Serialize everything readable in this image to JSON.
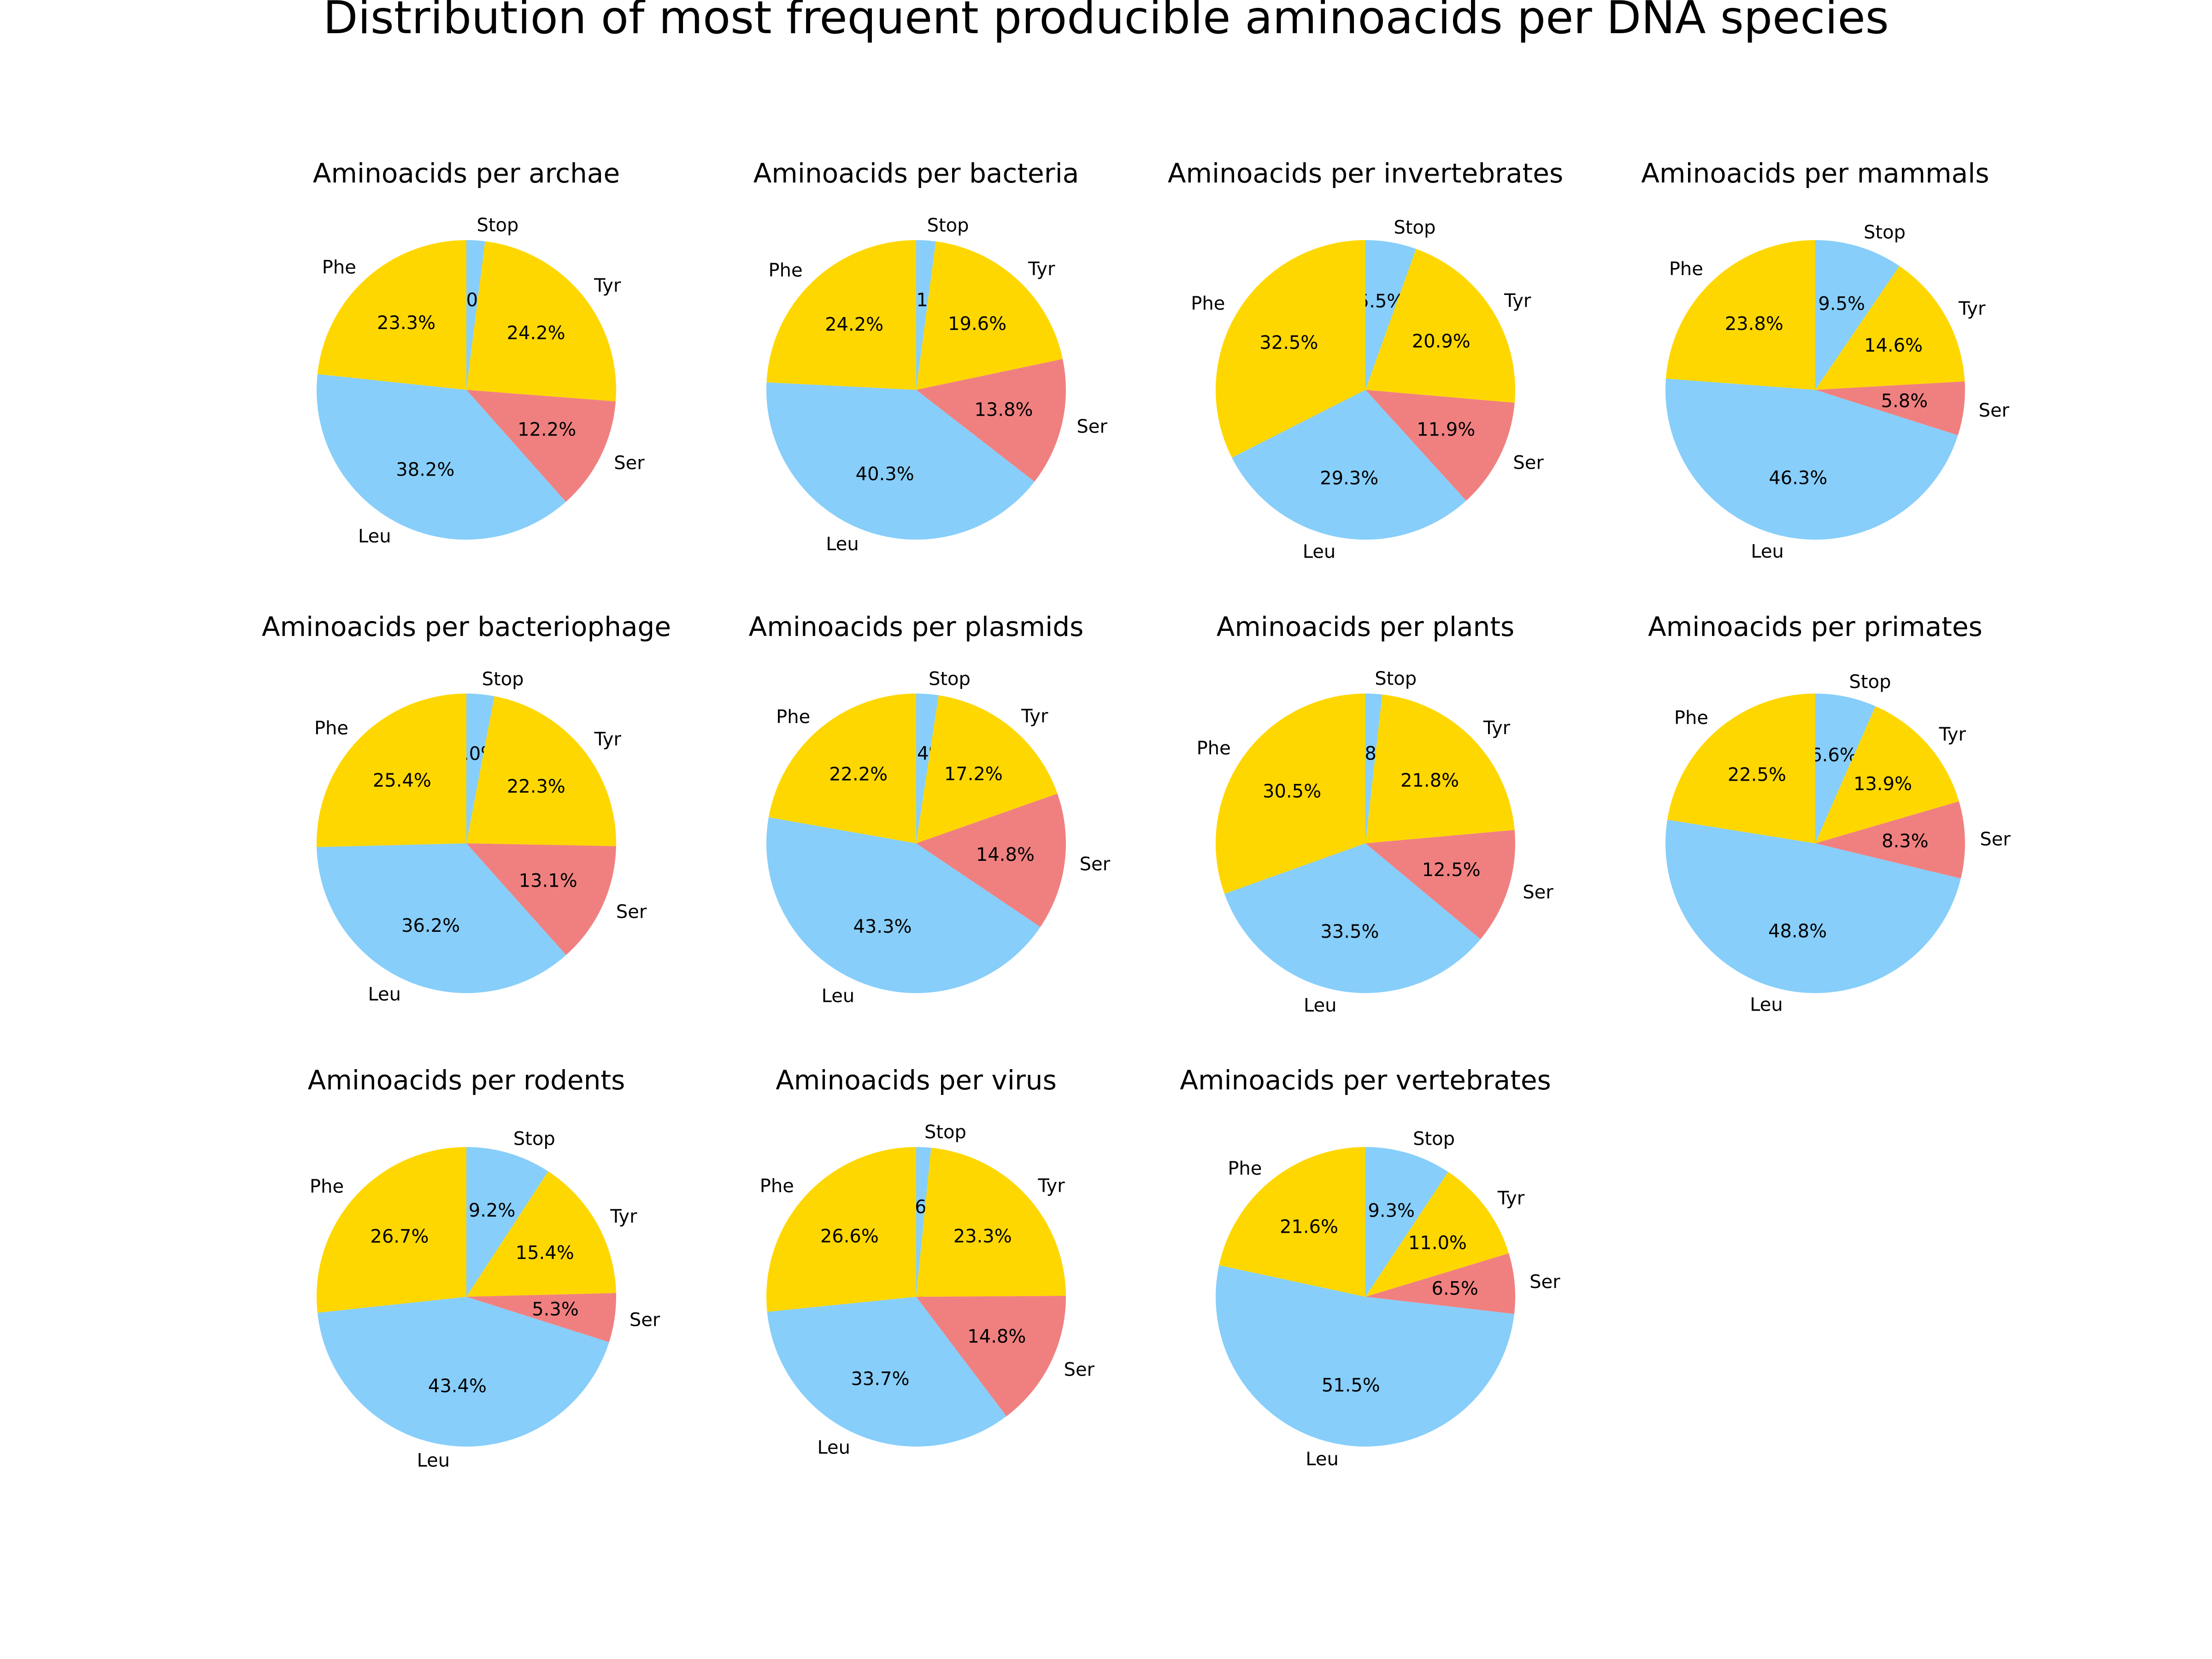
{
  "figure": {
    "title": "Distribution of most frequent producible aminoacids per DNA species"
  },
  "colors": {
    "Stop": "#87CEFA",
    "Tyr": "#FFD700",
    "Ser": "#F08080",
    "Leu": "#87CEFA",
    "Phe": "#FFD700"
  },
  "chart_data": [
    {
      "type": "pie",
      "title": "Aminoacids per archae",
      "labels": [
        "Stop",
        "Tyr",
        "Ser",
        "Leu",
        "Phe"
      ],
      "values": [
        2.0,
        24.2,
        12.2,
        38.2,
        23.3
      ],
      "value_labels": [
        "2.0%",
        "24.2%",
        "12.2%",
        "38.2%",
        "23.3%"
      ]
    },
    {
      "type": "pie",
      "title": "Aminoacids per bacteria",
      "labels": [
        "Stop",
        "Tyr",
        "Ser",
        "Leu",
        "Phe"
      ],
      "values": [
        2.1,
        19.6,
        13.8,
        40.3,
        24.2
      ],
      "value_labels": [
        "2.1%",
        "19.6%",
        "13.8%",
        "40.3%",
        "24.2%"
      ]
    },
    {
      "type": "pie",
      "title": "Aminoacids per invertebrates",
      "labels": [
        "Stop",
        "Tyr",
        "Ser",
        "Leu",
        "Phe"
      ],
      "values": [
        5.5,
        20.9,
        11.9,
        29.3,
        32.5
      ],
      "value_labels": [
        "5.5%",
        "20.9%",
        "11.9%",
        "29.3%",
        "32.5%"
      ]
    },
    {
      "type": "pie",
      "title": "Aminoacids per mammals",
      "labels": [
        "Stop",
        "Tyr",
        "Ser",
        "Leu",
        "Phe"
      ],
      "values": [
        9.5,
        14.6,
        5.8,
        46.3,
        23.8
      ],
      "value_labels": [
        "9.5%",
        "14.6%",
        "5.8%",
        "46.3%",
        "23.8%"
      ]
    },
    {
      "type": "pie",
      "title": "Aminoacids per bacteriophage",
      "labels": [
        "Stop",
        "Tyr",
        "Ser",
        "Leu",
        "Phe"
      ],
      "values": [
        3.0,
        22.3,
        13.1,
        36.2,
        25.4
      ],
      "value_labels": [
        "3.0%",
        "22.3%",
        "13.1%",
        "36.2%",
        "25.4%"
      ]
    },
    {
      "type": "pie",
      "title": "Aminoacids per plasmids",
      "labels": [
        "Stop",
        "Tyr",
        "Ser",
        "Leu",
        "Phe"
      ],
      "values": [
        2.4,
        17.2,
        14.8,
        43.3,
        22.2
      ],
      "value_labels": [
        "2.4%",
        "17.2%",
        "14.8%",
        "43.3%",
        "22.2%"
      ]
    },
    {
      "type": "pie",
      "title": "Aminoacids per plants",
      "labels": [
        "Stop",
        "Tyr",
        "Ser",
        "Leu",
        "Phe"
      ],
      "values": [
        1.8,
        21.8,
        12.5,
        33.5,
        30.5
      ],
      "value_labels": [
        "1.8%",
        "21.8%",
        "12.5%",
        "33.5%",
        "30.5%"
      ]
    },
    {
      "type": "pie",
      "title": "Aminoacids per primates",
      "labels": [
        "Stop",
        "Tyr",
        "Ser",
        "Leu",
        "Phe"
      ],
      "values": [
        6.6,
        13.9,
        8.3,
        48.8,
        22.5
      ],
      "value_labels": [
        "6.6%",
        "13.9%",
        "8.3%",
        "48.8%",
        "22.5%"
      ]
    },
    {
      "type": "pie",
      "title": "Aminoacids per rodents",
      "labels": [
        "Stop",
        "Tyr",
        "Ser",
        "Leu",
        "Phe"
      ],
      "values": [
        9.2,
        15.4,
        5.3,
        43.4,
        26.7
      ],
      "value_labels": [
        "9.2%",
        "15.4%",
        "5.3%",
        "43.4%",
        "26.7%"
      ]
    },
    {
      "type": "pie",
      "title": "Aminoacids per virus",
      "labels": [
        "Stop",
        "Tyr",
        "Ser",
        "Leu",
        "Phe"
      ],
      "values": [
        1.6,
        23.3,
        14.8,
        33.7,
        26.6
      ],
      "value_labels": [
        "1.6%",
        "23.3%",
        "14.8%",
        "33.7%",
        "26.6%"
      ]
    },
    {
      "type": "pie",
      "title": "Aminoacids per vertebrates",
      "labels": [
        "Stop",
        "Tyr",
        "Ser",
        "Leu",
        "Phe"
      ],
      "values": [
        9.3,
        11.0,
        6.5,
        51.5,
        21.6
      ],
      "value_labels": [
        "9.3%",
        "11.0%",
        "6.5%",
        "51.5%",
        "21.6%"
      ]
    }
  ]
}
